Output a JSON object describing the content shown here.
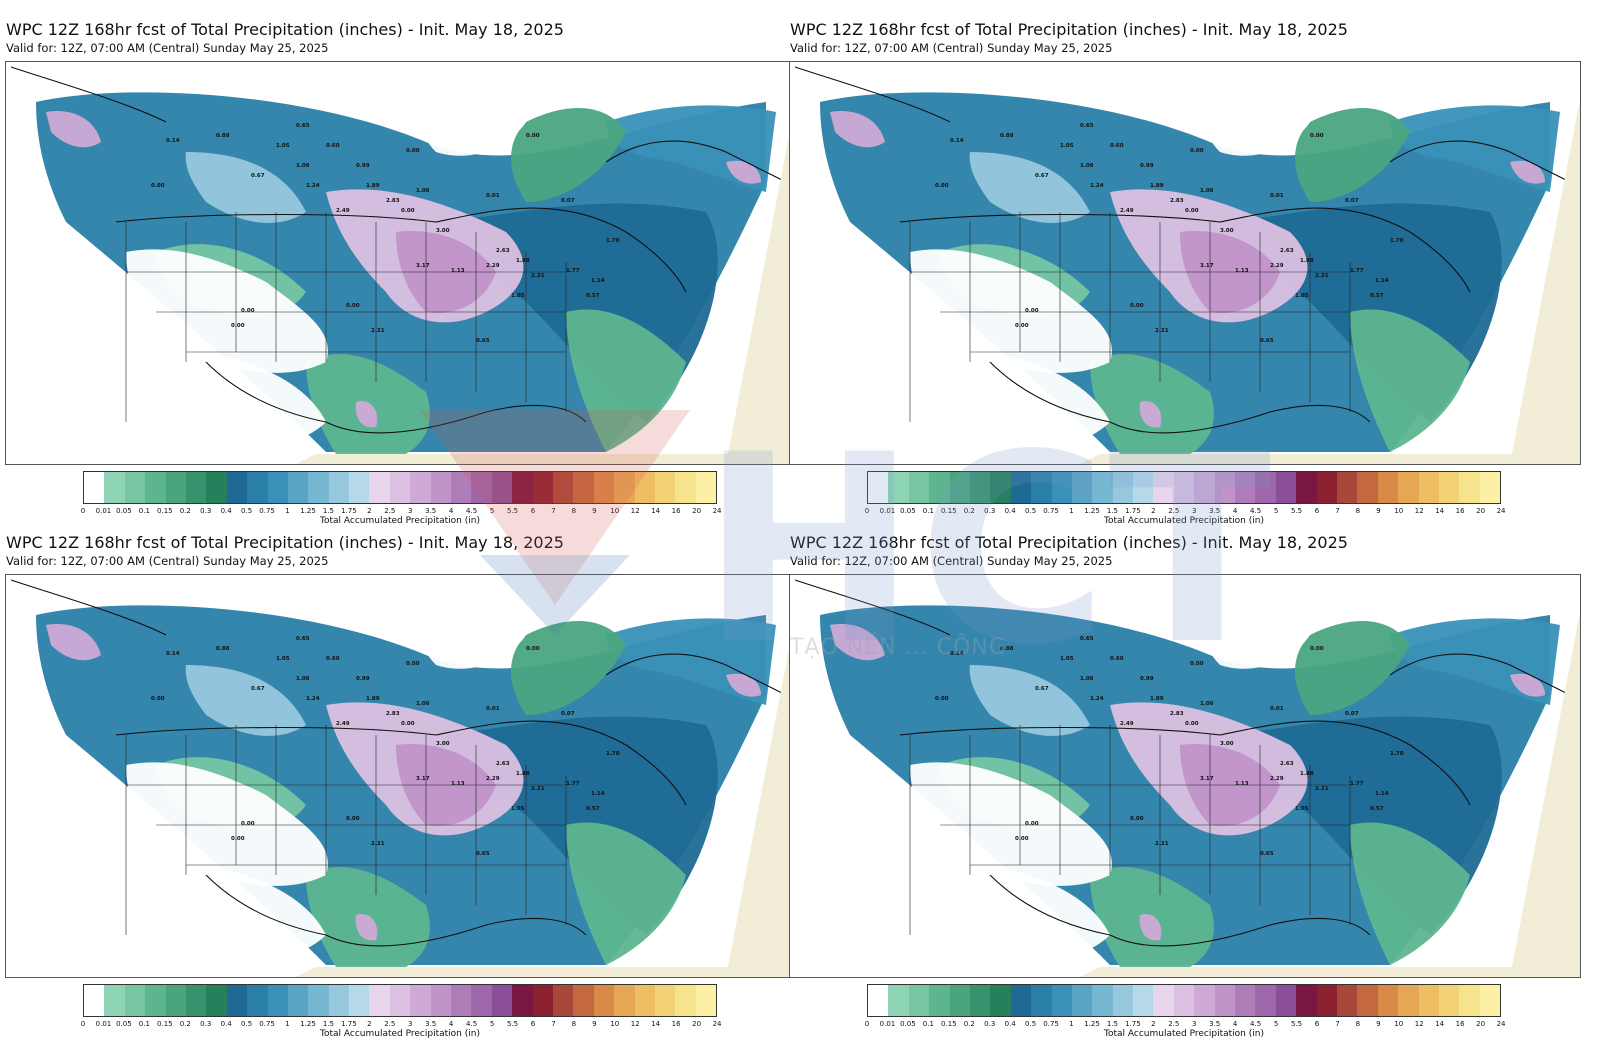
{
  "panels": [
    {
      "title": "WPC 12Z 168hr fcst of Total Precipitation (inches) - Init. May 18, 2025",
      "valid": "Valid for: 12Z, 07:00 AM (Central) Sunday May 25, 2025",
      "colorbar_label": "Total Accumulated Precipitation (in)"
    },
    {
      "title": "WPC 12Z 168hr fcst of Total Precipitation (inches) - Init. May 18, 2025",
      "valid": "Valid for: 12Z, 07:00 AM (Central) Sunday May 25, 2025",
      "colorbar_label": "Total Accumulated Precipitation (in)"
    },
    {
      "title": "WPC 12Z 168hr fcst of Total Precipitation (inches) - Init. May 18, 2025",
      "valid": "Valid for: 12Z, 07:00 AM (Central) Sunday May 25, 2025",
      "colorbar_label": "Total Accumulated Precipitation (in)"
    },
    {
      "title": "WPC 12Z 168hr fcst of Total Precipitation (inches) - Init. May 18, 2025",
      "valid": "Valid for: 12Z, 07:00 AM (Central) Sunday May 25, 2025",
      "colorbar_label": "Total Accumulated Precipitation (in)"
    }
  ],
  "colorbar": {
    "ticks": [
      "0",
      "0.01",
      "0.05",
      "0.1",
      "0.15",
      "0.2",
      "0.3",
      "0.4",
      "0.5",
      "0.75",
      "1",
      "1.25",
      "1.5",
      "1.75",
      "2",
      "2.5",
      "3",
      "3.5",
      "4",
      "4.5",
      "5",
      "5.5",
      "6",
      "7",
      "8",
      "9",
      "10",
      "12",
      "14",
      "16",
      "20",
      "24"
    ],
    "colors": [
      "#ffffff",
      "#8fd3b5",
      "#76c6a3",
      "#5db58f",
      "#4aa57f",
      "#37936d",
      "#25805c",
      "#1f6a95",
      "#2a7fa8",
      "#3a91b8",
      "#5aa5c6",
      "#78b7d2",
      "#98c8de",
      "#b6d9ea",
      "#e8d6eb",
      "#dcc1e2",
      "#cfaad6",
      "#c194c9",
      "#b07dbb",
      "#9e66ab",
      "#8a4f98",
      "#7a1642",
      "#8c2130",
      "#a8483a",
      "#c4683f",
      "#d98a48",
      "#e6a654",
      "#eebe63",
      "#f3d276",
      "#f7e38b",
      "#fbf0a3"
    ]
  },
  "map_labels": [
    {
      "v": "0.88"
    },
    {
      "v": "0.65"
    },
    {
      "v": "1.05"
    },
    {
      "v": "0.60"
    },
    {
      "v": "0.00"
    },
    {
      "v": "0.00"
    },
    {
      "v": "1.06"
    },
    {
      "v": "0.99"
    },
    {
      "v": "1.89"
    },
    {
      "v": "2.83"
    },
    {
      "v": "1.06"
    },
    {
      "v": "0.67"
    },
    {
      "v": "1.24"
    },
    {
      "v": "2.49"
    },
    {
      "v": "3.00"
    },
    {
      "v": "2.63"
    },
    {
      "v": "1.88"
    },
    {
      "v": "2.29"
    },
    {
      "v": "2.21"
    },
    {
      "v": "1.77"
    },
    {
      "v": "1.70"
    },
    {
      "v": "3.17"
    },
    {
      "v": "1.13"
    },
    {
      "v": "0.57"
    },
    {
      "v": "2.21"
    },
    {
      "v": "1.05"
    },
    {
      "v": "0.65"
    },
    {
      "v": "0.00"
    },
    {
      "v": "0.00"
    },
    {
      "v": "0.00"
    },
    {
      "v": "0.14"
    },
    {
      "v": "0.00"
    },
    {
      "v": "1.14"
    },
    {
      "v": "0.00"
    },
    {
      "v": "0.01"
    },
    {
      "v": "0.07"
    }
  ],
  "watermark": {
    "letters": "HCT",
    "subtitle": "TẠO NỀN ... CÔNG"
  }
}
